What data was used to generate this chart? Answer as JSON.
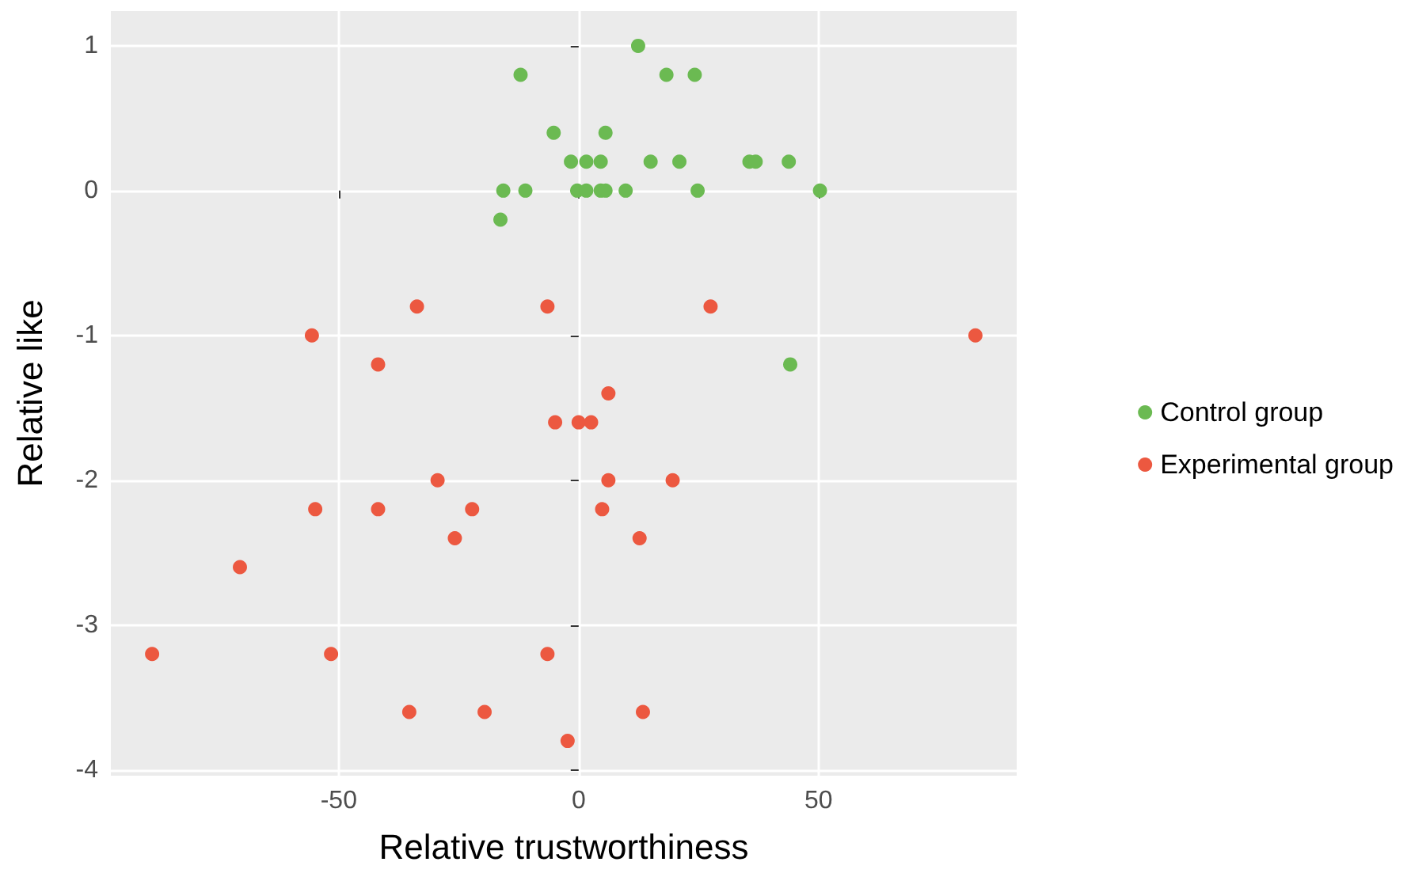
{
  "chart_data": {
    "type": "scatter",
    "xlabel": "Relative trustworthiness",
    "ylabel": "Relative like",
    "xlim": [
      -97.5,
      91.3
    ],
    "xticks": [
      -50,
      0,
      50
    ],
    "ylim": [
      -4.04,
      1.24
    ],
    "yticks": [
      -4,
      -3,
      -2,
      -1,
      0,
      1
    ],
    "grid": true,
    "legend": "right",
    "marker": "circle",
    "series": [
      {
        "name": "Control group",
        "color": "#6bba52",
        "x": [
          12.4,
          -12.1,
          18.3,
          24.2,
          -5.2,
          5.6,
          -1.6,
          1.6,
          3.9,
          4.6,
          15,
          21,
          35.6,
          36.9,
          43.8,
          -15.7,
          -11.1,
          -0.3,
          1.6,
          4.6,
          5.6,
          9.8,
          24.8,
          50.3,
          -16.3,
          44.1
        ],
        "values": [
          1,
          0.8,
          0.8,
          0.8,
          0.4,
          0.4,
          0.2,
          0.2,
          null,
          0.2,
          0.2,
          0.2,
          0.2,
          0.2,
          0.2,
          0,
          0,
          0,
          0,
          0,
          0,
          0,
          0,
          0,
          -0.2,
          -1.2
        ]
      },
      {
        "name": "Experimental group",
        "color": "#ec5840",
        "x": [
          -33.7,
          -6.5,
          27.5,
          -55.6,
          82.7,
          -41.8,
          6.2,
          -4.9,
          0,
          2.6,
          -29.4,
          6.2,
          19.6,
          -54.9,
          -41.8,
          -22.2,
          4.9,
          -25.8,
          12.7,
          -70.6,
          -88.9,
          -51.6,
          -6.5,
          -35.3,
          -19.6,
          13.4,
          -2.3
        ],
        "values": [
          -0.8,
          -0.8,
          -0.8,
          -1,
          -1,
          -1.2,
          -1.4,
          -1.6,
          -1.6,
          -1.6,
          -2,
          -2,
          -2,
          -2.2,
          -2.2,
          -2.2,
          -2.2,
          -2.4,
          -2.4,
          -2.6,
          -3.2,
          -3.2,
          -3.2,
          -3.6,
          -3.6,
          -3.6,
          -3.8
        ]
      }
    ]
  }
}
